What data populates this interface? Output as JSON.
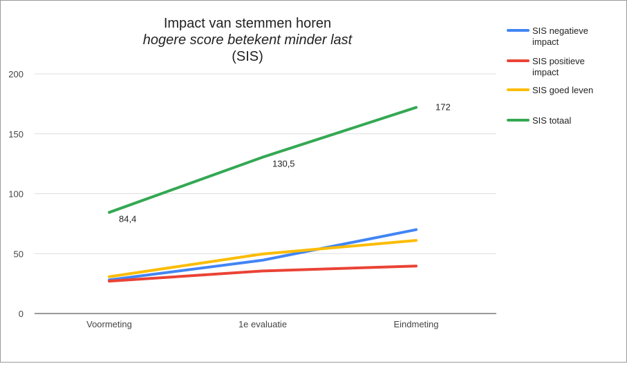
{
  "chart_data": {
    "type": "line",
    "title": "Impact van stemmen horen",
    "subtitle": "hogere score betekent minder last",
    "subtitle2": "(SIS)",
    "categories": [
      "Voormeting",
      "1e evaluatie",
      "Eindmeting"
    ],
    "ylim": [
      0,
      200
    ],
    "yticks": [
      "0",
      "50",
      "100",
      "150",
      "200"
    ],
    "grid": true,
    "legend_position": "right",
    "series": [
      {
        "name": "SIS negatieve impact",
        "legend_lines": [
          "SIS negatieve",
          "impact"
        ],
        "color": "#4285f4",
        "values": [
          28,
          44.5,
          70
        ]
      },
      {
        "name": "SIS positieve impact",
        "legend_lines": [
          "SIS positieve",
          "impact"
        ],
        "color": "#ea4335",
        "values": [
          27,
          35.5,
          39.6
        ]
      },
      {
        "name": "SIS goed leven",
        "legend_lines": [
          "SIS goed leven"
        ],
        "color": "#fbbc04",
        "values": [
          30.7,
          49.7,
          61
        ]
      },
      {
        "name": "SIS totaal",
        "legend_lines": [
          "SIS totaal"
        ],
        "color": "#34a853",
        "values": [
          84.4,
          130.5,
          172
        ],
        "labels": [
          "84,4",
          "130,5",
          "172"
        ]
      }
    ]
  }
}
